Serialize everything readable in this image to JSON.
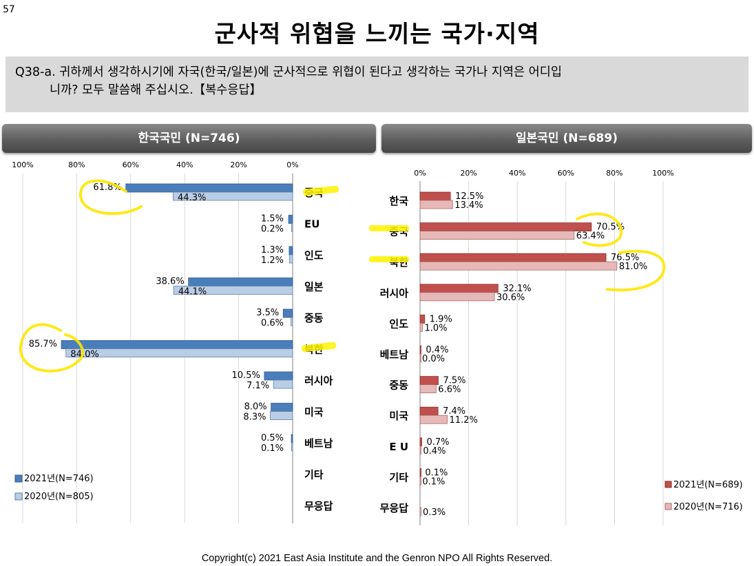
{
  "page_number": "57",
  "title": "군사적 위협을 느끼는 국가·지역",
  "question": {
    "line1": "Q38-a. 귀하께서 생각하시기에 자국(한국/일본)에 군사적으로 위협이 된다고 생각하는 국가나 지역은 어디입",
    "line2": "니까? 모두 말씀해 주십시오.【복수응답】"
  },
  "footer": {
    "copyright": "Copyright(c) 2021 East Asia Institute and the Genron NPO All Rights Reserved."
  },
  "colors": {
    "korea_2021": "#4a7ebb",
    "korea_2020": "#b9cde5",
    "japan_2021": "#c0504d",
    "japan_2020": "#e6b9b8",
    "highlighter": "#ffe600"
  },
  "chart_data": [
    {
      "type": "bar",
      "orientation": "horizontal",
      "direction": "right-to-left",
      "title": "한국국민 (N=746)",
      "xlim": [
        0,
        100
      ],
      "tick_labels": [
        "100%",
        "80%",
        "60%",
        "40%",
        "20%",
        "0%"
      ],
      "categories": [
        "중국",
        "EU",
        "인도",
        "일본",
        "중동",
        "북한",
        "러시아",
        "미국",
        "베트남",
        "기타",
        "무응답"
      ],
      "series": [
        {
          "name": "2021년(N=746)",
          "values": [
            61.8,
            1.5,
            1.3,
            38.6,
            3.5,
            85.7,
            10.5,
            8.0,
            0.5,
            null,
            null
          ],
          "labels": [
            "61.8%",
            "1.5%",
            "1.3%",
            "38.6%",
            "3.5%",
            "85.7%",
            "10.5%",
            "8.0%",
            "0.5%",
            "",
            ""
          ]
        },
        {
          "name": "2020년(N=805)",
          "values": [
            44.3,
            0.2,
            1.2,
            44.1,
            0.6,
            84.0,
            7.1,
            8.3,
            0.1,
            null,
            null
          ],
          "labels": [
            "44.3%",
            "0.2%",
            "1.2%",
            "44.1%",
            "0.6%",
            "84.0%",
            "7.1%",
            "8.3%",
            "0.1%",
            "",
            ""
          ]
        }
      ],
      "legend_position": "bottom-left",
      "grid": true
    },
    {
      "type": "bar",
      "orientation": "horizontal",
      "direction": "left-to-right",
      "title": "일본국민 (N=689)",
      "xlim": [
        0,
        100
      ],
      "tick_labels": [
        "0%",
        "20%",
        "40%",
        "60%",
        "80%",
        "100%"
      ],
      "categories": [
        "한국",
        "중국",
        "북한",
        "러시아",
        "인도",
        "베트남",
        "중동",
        "미국",
        "E U",
        "기타",
        "무응답"
      ],
      "series": [
        {
          "name": "2021년(N=689)",
          "values": [
            12.5,
            70.5,
            76.5,
            32.1,
            1.9,
            0.4,
            7.5,
            7.4,
            0.7,
            0.1,
            null
          ],
          "labels": [
            "12.5%",
            "70.5%",
            "76.5%",
            "32.1%",
            "1.9%",
            "0.4%",
            "7.5%",
            "7.4%",
            "0.7%",
            "0.1%",
            ""
          ]
        },
        {
          "name": "2020년(N=716)",
          "values": [
            13.4,
            63.4,
            81.0,
            30.6,
            1.0,
            0.0,
            6.6,
            11.2,
            0.4,
            0.1,
            0.3
          ],
          "labels": [
            "13.4%",
            "63.4%",
            "81.0%",
            "30.6%",
            "1.0%",
            "0.0%",
            "6.6%",
            "11.2%",
            "0.4%",
            "0.1%",
            "0.3%"
          ]
        }
      ],
      "legend_position": "bottom-right",
      "grid": true
    }
  ]
}
